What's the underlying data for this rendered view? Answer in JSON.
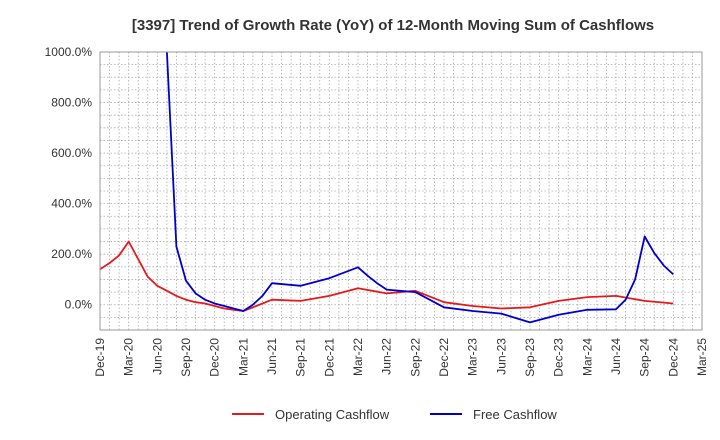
{
  "chart_data": {
    "type": "line",
    "title": "[3397]  Trend of Growth Rate (YoY) of 12-Month Moving Sum of Cashflows",
    "xlabel": "",
    "ylabel": "",
    "ylim": [
      -100,
      1000
    ],
    "y_ticks": [
      "1000.0%",
      "800.0%",
      "600.0%",
      "400.0%",
      "200.0%",
      "0.0%"
    ],
    "y_tick_values": [
      1000,
      800,
      600,
      400,
      200,
      0
    ],
    "x_tick_labels": [
      "Dec-19",
      "Mar-20",
      "Jun-20",
      "Sep-20",
      "Dec-20",
      "Mar-21",
      "Jun-21",
      "Sep-21",
      "Dec-21",
      "Mar-22",
      "Jun-22",
      "Sep-22",
      "Dec-22",
      "Mar-23",
      "Jun-23",
      "Sep-23",
      "Dec-23",
      "Mar-24",
      "Jun-24",
      "Sep-24",
      "Dec-24",
      "Mar-25"
    ],
    "x_months": 63,
    "grid": true,
    "legend_position": "bottom",
    "series": [
      {
        "name": "Operating Cashflow",
        "color": "#e41a1c",
        "points": [
          [
            0,
            140
          ],
          [
            1,
            165
          ],
          [
            2,
            195
          ],
          [
            3,
            250
          ],
          [
            4,
            180
          ],
          [
            5,
            110
          ],
          [
            6,
            75
          ],
          [
            7,
            55
          ],
          [
            8,
            35
          ],
          [
            9,
            20
          ],
          [
            10,
            10
          ],
          [
            11,
            5
          ],
          [
            12,
            -5
          ],
          [
            13,
            -15
          ],
          [
            14,
            -20
          ],
          [
            15,
            -25
          ],
          [
            16,
            -10
          ],
          [
            18,
            20
          ],
          [
            21,
            15
          ],
          [
            24,
            35
          ],
          [
            27,
            65
          ],
          [
            30,
            45
          ],
          [
            33,
            55
          ],
          [
            36,
            10
          ],
          [
            39,
            -5
          ],
          [
            42,
            -15
          ],
          [
            45,
            -10
          ],
          [
            48,
            15
          ],
          [
            51,
            30
          ],
          [
            54,
            35
          ],
          [
            57,
            15
          ],
          [
            60,
            5
          ]
        ]
      },
      {
        "name": "Free Cashflow",
        "color": "#0000cd",
        "points": [
          [
            7,
            1000
          ],
          [
            8,
            230
          ],
          [
            9,
            95
          ],
          [
            10,
            45
          ],
          [
            11,
            20
          ],
          [
            12,
            5
          ],
          [
            13,
            -5
          ],
          [
            14,
            -15
          ],
          [
            15,
            -25
          ],
          [
            16,
            0
          ],
          [
            17,
            35
          ],
          [
            18,
            85
          ],
          [
            21,
            75
          ],
          [
            24,
            105
          ],
          [
            27,
            148
          ],
          [
            28,
            115
          ],
          [
            29,
            85
          ],
          [
            30,
            60
          ],
          [
            33,
            50
          ],
          [
            36,
            -10
          ],
          [
            39,
            -25
          ],
          [
            42,
            -35
          ],
          [
            45,
            -70
          ],
          [
            48,
            -40
          ],
          [
            51,
            -20
          ],
          [
            54,
            -18
          ],
          [
            55,
            20
          ],
          [
            56,
            100
          ],
          [
            57,
            270
          ],
          [
            58,
            205
          ],
          [
            59,
            155
          ],
          [
            60,
            120
          ]
        ]
      }
    ]
  }
}
